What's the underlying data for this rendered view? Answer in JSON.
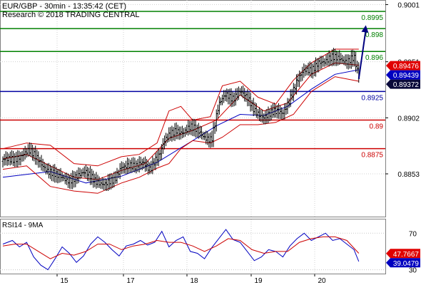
{
  "header": {
    "title": "EUR/GBP - 30min - 13:35:42 (CET)",
    "credit": "Research © 2018 TRADING CENTRAL"
  },
  "chart_data": [
    {
      "type": "candlestick",
      "name": "price",
      "ylim": [
        0.8815,
        0.9005
      ],
      "y_ticks": [
        "0.9001",
        "0.8951",
        "0.8902",
        "0.8853"
      ],
      "x_ticks": [
        "15",
        "17",
        "18",
        "19",
        "20"
      ],
      "levels": [
        {
          "value": 0.8995,
          "label": "0.8995",
          "color": "#008000"
        },
        {
          "value": 0.898,
          "label": "0.898",
          "color": "#008000"
        },
        {
          "value": 0.896,
          "label": "0.896",
          "color": "#008000"
        },
        {
          "value": 0.8925,
          "label": "0.8925",
          "color": "#0000a0"
        },
        {
          "value": 0.89,
          "label": "0.89",
          "color": "#cc0000"
        },
        {
          "value": 0.8875,
          "label": "0.8875",
          "color": "#cc0000"
        }
      ],
      "price_tags": [
        {
          "value": 0.89476,
          "label": "0.89476",
          "color": "#e00000"
        },
        {
          "value": 0.89439,
          "label": "0.89439",
          "color": "#0000c0"
        },
        {
          "value": 0.89372,
          "label": "0.89372",
          "color": "#0a0a3a"
        }
      ],
      "close_path": [
        [
          0,
          0.8864
        ],
        [
          12,
          0.8868
        ],
        [
          22,
          0.8872
        ],
        [
          30,
          0.8866
        ],
        [
          38,
          0.8856
        ],
        [
          46,
          0.885
        ],
        [
          54,
          0.8848
        ],
        [
          62,
          0.8851
        ],
        [
          70,
          0.8853
        ],
        [
          78,
          0.8848
        ],
        [
          86,
          0.8844
        ],
        [
          94,
          0.8846
        ],
        [
          100,
          0.886
        ],
        [
          106,
          0.8862
        ],
        [
          112,
          0.8858
        ],
        [
          118,
          0.8862
        ],
        [
          124,
          0.8858
        ],
        [
          128,
          0.8866
        ],
        [
          132,
          0.887
        ],
        [
          136,
          0.888
        ],
        [
          140,
          0.8885
        ],
        [
          146,
          0.8892
        ],
        [
          152,
          0.889
        ],
        [
          158,
          0.8893
        ],
        [
          164,
          0.889
        ],
        [
          170,
          0.8886
        ],
        [
          176,
          0.8884
        ],
        [
          182,
          0.8912
        ],
        [
          188,
          0.8922
        ],
        [
          194,
          0.892
        ],
        [
          200,
          0.8926
        ],
        [
          206,
          0.8918
        ],
        [
          212,
          0.8908
        ],
        [
          220,
          0.8904
        ],
        [
          228,
          0.8906
        ],
        [
          236,
          0.8906
        ],
        [
          242,
          0.892
        ],
        [
          248,
          0.8934
        ],
        [
          254,
          0.8942
        ],
        [
          260,
          0.8944
        ],
        [
          266,
          0.8952
        ],
        [
          272,
          0.895
        ],
        [
          278,
          0.8954
        ],
        [
          284,
          0.8955
        ],
        [
          290,
          0.8952
        ],
        [
          296,
          0.8954
        ],
        [
          300,
          0.8936
        ]
      ],
      "series": [
        {
          "name": "",
          "color": "#0000c0",
          "points": [
            [
              0,
              0.885
            ],
            [
              40,
              0.8855
            ],
            [
              70,
              0.8845
            ],
            [
              100,
              0.8851
            ],
            [
              130,
              0.8863
            ],
            [
              160,
              0.8882
            ],
            [
              180,
              0.8895
            ],
            [
              200,
              0.8905
            ],
            [
              220,
              0.8904
            ],
            [
              240,
              0.8912
            ],
            [
              260,
              0.8927
            ],
            [
              280,
              0.894
            ],
            [
              300,
              0.8944
            ]
          ]
        },
        {
          "name": "",
          "color": "#cc0000",
          "points": [
            [
              0,
              0.8866
            ],
            [
              20,
              0.887
            ],
            [
              40,
              0.886
            ],
            [
              60,
              0.885
            ],
            [
              80,
              0.8848
            ],
            [
              100,
              0.8856
            ],
            [
              120,
              0.8862
            ],
            [
              140,
              0.8884
            ],
            [
              160,
              0.8891
            ],
            [
              180,
              0.89
            ],
            [
              200,
              0.8922
            ],
            [
              220,
              0.8908
            ],
            [
              240,
              0.8915
            ],
            [
              260,
              0.894
            ],
            [
              280,
              0.895
            ],
            [
              300,
              0.8948
            ]
          ]
        },
        {
          "name": "",
          "color": "#cc0000",
          "points": [
            [
              0,
              0.8875
            ],
            [
              20,
              0.888
            ],
            [
              40,
              0.8878
            ],
            [
              60,
              0.8862
            ],
            [
              80,
              0.886
            ],
            [
              100,
              0.8868
            ],
            [
              115,
              0.887
            ],
            [
              130,
              0.888
            ],
            [
              140,
              0.8908
            ],
            [
              150,
              0.8912
            ],
            [
              160,
              0.89
            ],
            [
              175,
              0.8903
            ],
            [
              185,
              0.893
            ],
            [
              200,
              0.8934
            ],
            [
              215,
              0.892
            ],
            [
              230,
              0.8914
            ],
            [
              245,
              0.8935
            ],
            [
              260,
              0.895
            ],
            [
              280,
              0.8962
            ],
            [
              300,
              0.8962
            ]
          ]
        },
        {
          "name": "",
          "color": "#cc0000",
          "points": [
            [
              0,
              0.8857
            ],
            [
              20,
              0.886
            ],
            [
              40,
              0.8842
            ],
            [
              60,
              0.8838
            ],
            [
              80,
              0.8836
            ],
            [
              100,
              0.8845
            ],
            [
              115,
              0.885
            ],
            [
              130,
              0.8858
            ],
            [
              140,
              0.8862
            ],
            [
              150,
              0.8875
            ],
            [
              160,
              0.8882
            ],
            [
              175,
              0.888
            ],
            [
              185,
              0.8885
            ],
            [
              200,
              0.8896
            ],
            [
              215,
              0.8896
            ],
            [
              230,
              0.8898
            ],
            [
              245,
              0.8905
            ],
            [
              260,
              0.8925
            ],
            [
              280,
              0.8938
            ],
            [
              300,
              0.8934
            ]
          ]
        }
      ],
      "arrow": {
        "from": [
          300,
          0.8936
        ],
        "to": [
          306,
          0.8983
        ],
        "color": "#000080"
      }
    },
    {
      "type": "line",
      "name": "rsi",
      "title": "RSI14 - 9MA",
      "ylim": [
        25,
        85
      ],
      "y_ticks": [
        "70",
        "30"
      ],
      "value_tags": [
        {
          "value": 47.7667,
          "label": "47.7667",
          "color": "#e00000"
        },
        {
          "value": 39.0479,
          "label": "39.0479",
          "color": "#0000c0"
        }
      ],
      "series": [
        {
          "name": "",
          "color": "#0000c0",
          "points": [
            [
              0,
              58
            ],
            [
              8,
              62
            ],
            [
              14,
              55
            ],
            [
              20,
              60
            ],
            [
              26,
              44
            ],
            [
              32,
              35
            ],
            [
              38,
              30
            ],
            [
              44,
              42
            ],
            [
              50,
              55
            ],
            [
              56,
              48
            ],
            [
              62,
              38
            ],
            [
              68,
              45
            ],
            [
              74,
              58
            ],
            [
              80,
              66
            ],
            [
              86,
              60
            ],
            [
              92,
              52
            ],
            [
              98,
              45
            ],
            [
              104,
              56
            ],
            [
              110,
              58
            ],
            [
              116,
              62
            ],
            [
              122,
              57
            ],
            [
              128,
              60
            ],
            [
              134,
              72
            ],
            [
              140,
              55
            ],
            [
              146,
              62
            ],
            [
              152,
              66
            ],
            [
              158,
              50
            ],
            [
              164,
              48
            ],
            [
              170,
              42
            ],
            [
              176,
              54
            ],
            [
              182,
              64
            ],
            [
              188,
              74
            ],
            [
              194,
              63
            ],
            [
              200,
              60
            ],
            [
              206,
              50
            ],
            [
              212,
              40
            ],
            [
              218,
              44
            ],
            [
              224,
              52
            ],
            [
              230,
              50
            ],
            [
              236,
              44
            ],
            [
              242,
              56
            ],
            [
              248,
              64
            ],
            [
              254,
              70
            ],
            [
              260,
              62
            ],
            [
              266,
              66
            ],
            [
              272,
              70
            ],
            [
              278,
              62
            ],
            [
              284,
              64
            ],
            [
              290,
              58
            ],
            [
              296,
              52
            ],
            [
              300,
              39
            ]
          ]
        },
        {
          "name": "",
          "color": "#cc0000",
          "points": [
            [
              0,
              56
            ],
            [
              10,
              58
            ],
            [
              20,
              58
            ],
            [
              30,
              50
            ],
            [
              40,
              42
            ],
            [
              50,
              48
            ],
            [
              60,
              46
            ],
            [
              70,
              50
            ],
            [
              80,
              58
            ],
            [
              90,
              58
            ],
            [
              100,
              52
            ],
            [
              110,
              56
            ],
            [
              120,
              58
            ],
            [
              130,
              62
            ],
            [
              140,
              60
            ],
            [
              150,
              60
            ],
            [
              160,
              56
            ],
            [
              170,
              50
            ],
            [
              180,
              56
            ],
            [
              190,
              64
            ],
            [
              200,
              62
            ],
            [
              210,
              52
            ],
            [
              220,
              48
            ],
            [
              230,
              50
            ],
            [
              240,
              50
            ],
            [
              250,
              60
            ],
            [
              260,
              64
            ],
            [
              270,
              66
            ],
            [
              280,
              66
            ],
            [
              290,
              62
            ],
            [
              300,
              48
            ]
          ]
        }
      ]
    }
  ]
}
